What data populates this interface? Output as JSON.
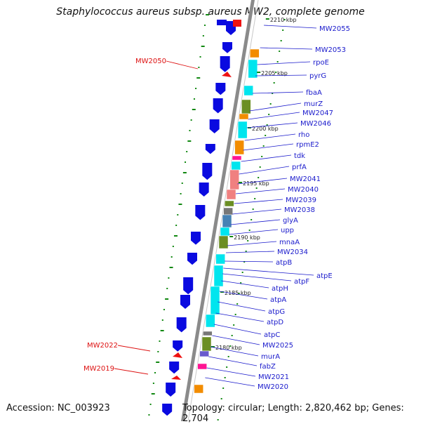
{
  "title": "Staphylococcus aureus subsp. aureus MW2, complete genome",
  "footer": {
    "accession": "Accession: NC_003923",
    "summary": "Topology: circular; Length: 2,820,462 bp; Genes: 2,704"
  },
  "colors": {
    "backbone": "#8a8a8a",
    "gene_arrow": "#0a0ae0",
    "label_blue": "#1a1acc",
    "label_red": "#dd1111",
    "dots": "#118811",
    "cds": "#00e5ee",
    "orange": "#f28c00",
    "olive": "#6b8e23",
    "salmon": "#f08080",
    "steelblue": "#4682b4",
    "gray": "#777777",
    "pink": "#ff1493",
    "purple": "#6a5acd"
  },
  "ticks": [
    "2210 kbp",
    "2205 kbp",
    "2200 kbp",
    "2195 kbp",
    "2190 kbp",
    "2185 kbp",
    "2180 kbp"
  ],
  "genes_right": [
    "MW2055",
    "MW2053",
    "rpoE",
    "pyrG",
    "fbaA",
    "murZ",
    "MW2047",
    "MW2046",
    "rho",
    "rpmE2",
    "tdk",
    "prfA",
    "MW2041",
    "MW2040",
    "MW2039",
    "MW2038",
    "glyA",
    "upp",
    "mnaA",
    "MW2034",
    "atpB",
    "atpE",
    "atpF",
    "atpH",
    "atpA",
    "atpG",
    "atpD",
    "atpC",
    "MW2025",
    "murA",
    "fabZ",
    "MW2021",
    "MW2020"
  ],
  "genes_left": [
    "MW2050",
    "MW2022",
    "MW2019"
  ]
}
